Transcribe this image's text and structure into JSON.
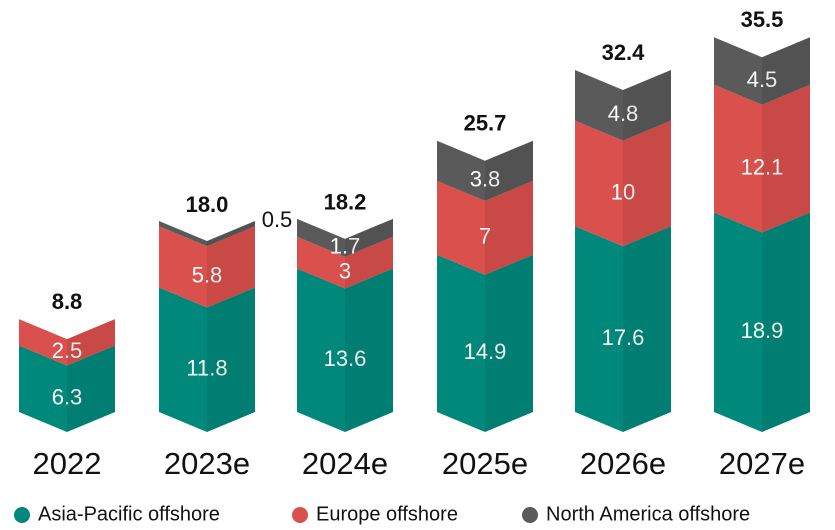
{
  "chart_data": {
    "type": "stacked-bar",
    "categories": [
      "2022",
      "2023e",
      "2024e",
      "2025e",
      "2026e",
      "2027e"
    ],
    "series": [
      {
        "name": "Asia-Pacific offshore",
        "color": "#00897b",
        "values": [
          6.3,
          11.8,
          13.6,
          14.9,
          17.6,
          18.9
        ]
      },
      {
        "name": "Europe offshore",
        "color": "#d9504c",
        "values": [
          2.5,
          5.8,
          3,
          7,
          10,
          12.1
        ]
      },
      {
        "name": "North America offshore",
        "color": "#5a5a5a",
        "values": [
          null,
          0.5,
          1.7,
          3.8,
          4.8,
          4.5
        ]
      }
    ],
    "totals": [
      8.8,
      18.0,
      18.2,
      25.7,
      32.4,
      35.5
    ],
    "totals_labels": [
      "8.8",
      "18.0",
      "18.2",
      "25.7",
      "32.4",
      "35.5"
    ],
    "ylim": [
      0,
      36
    ]
  }
}
